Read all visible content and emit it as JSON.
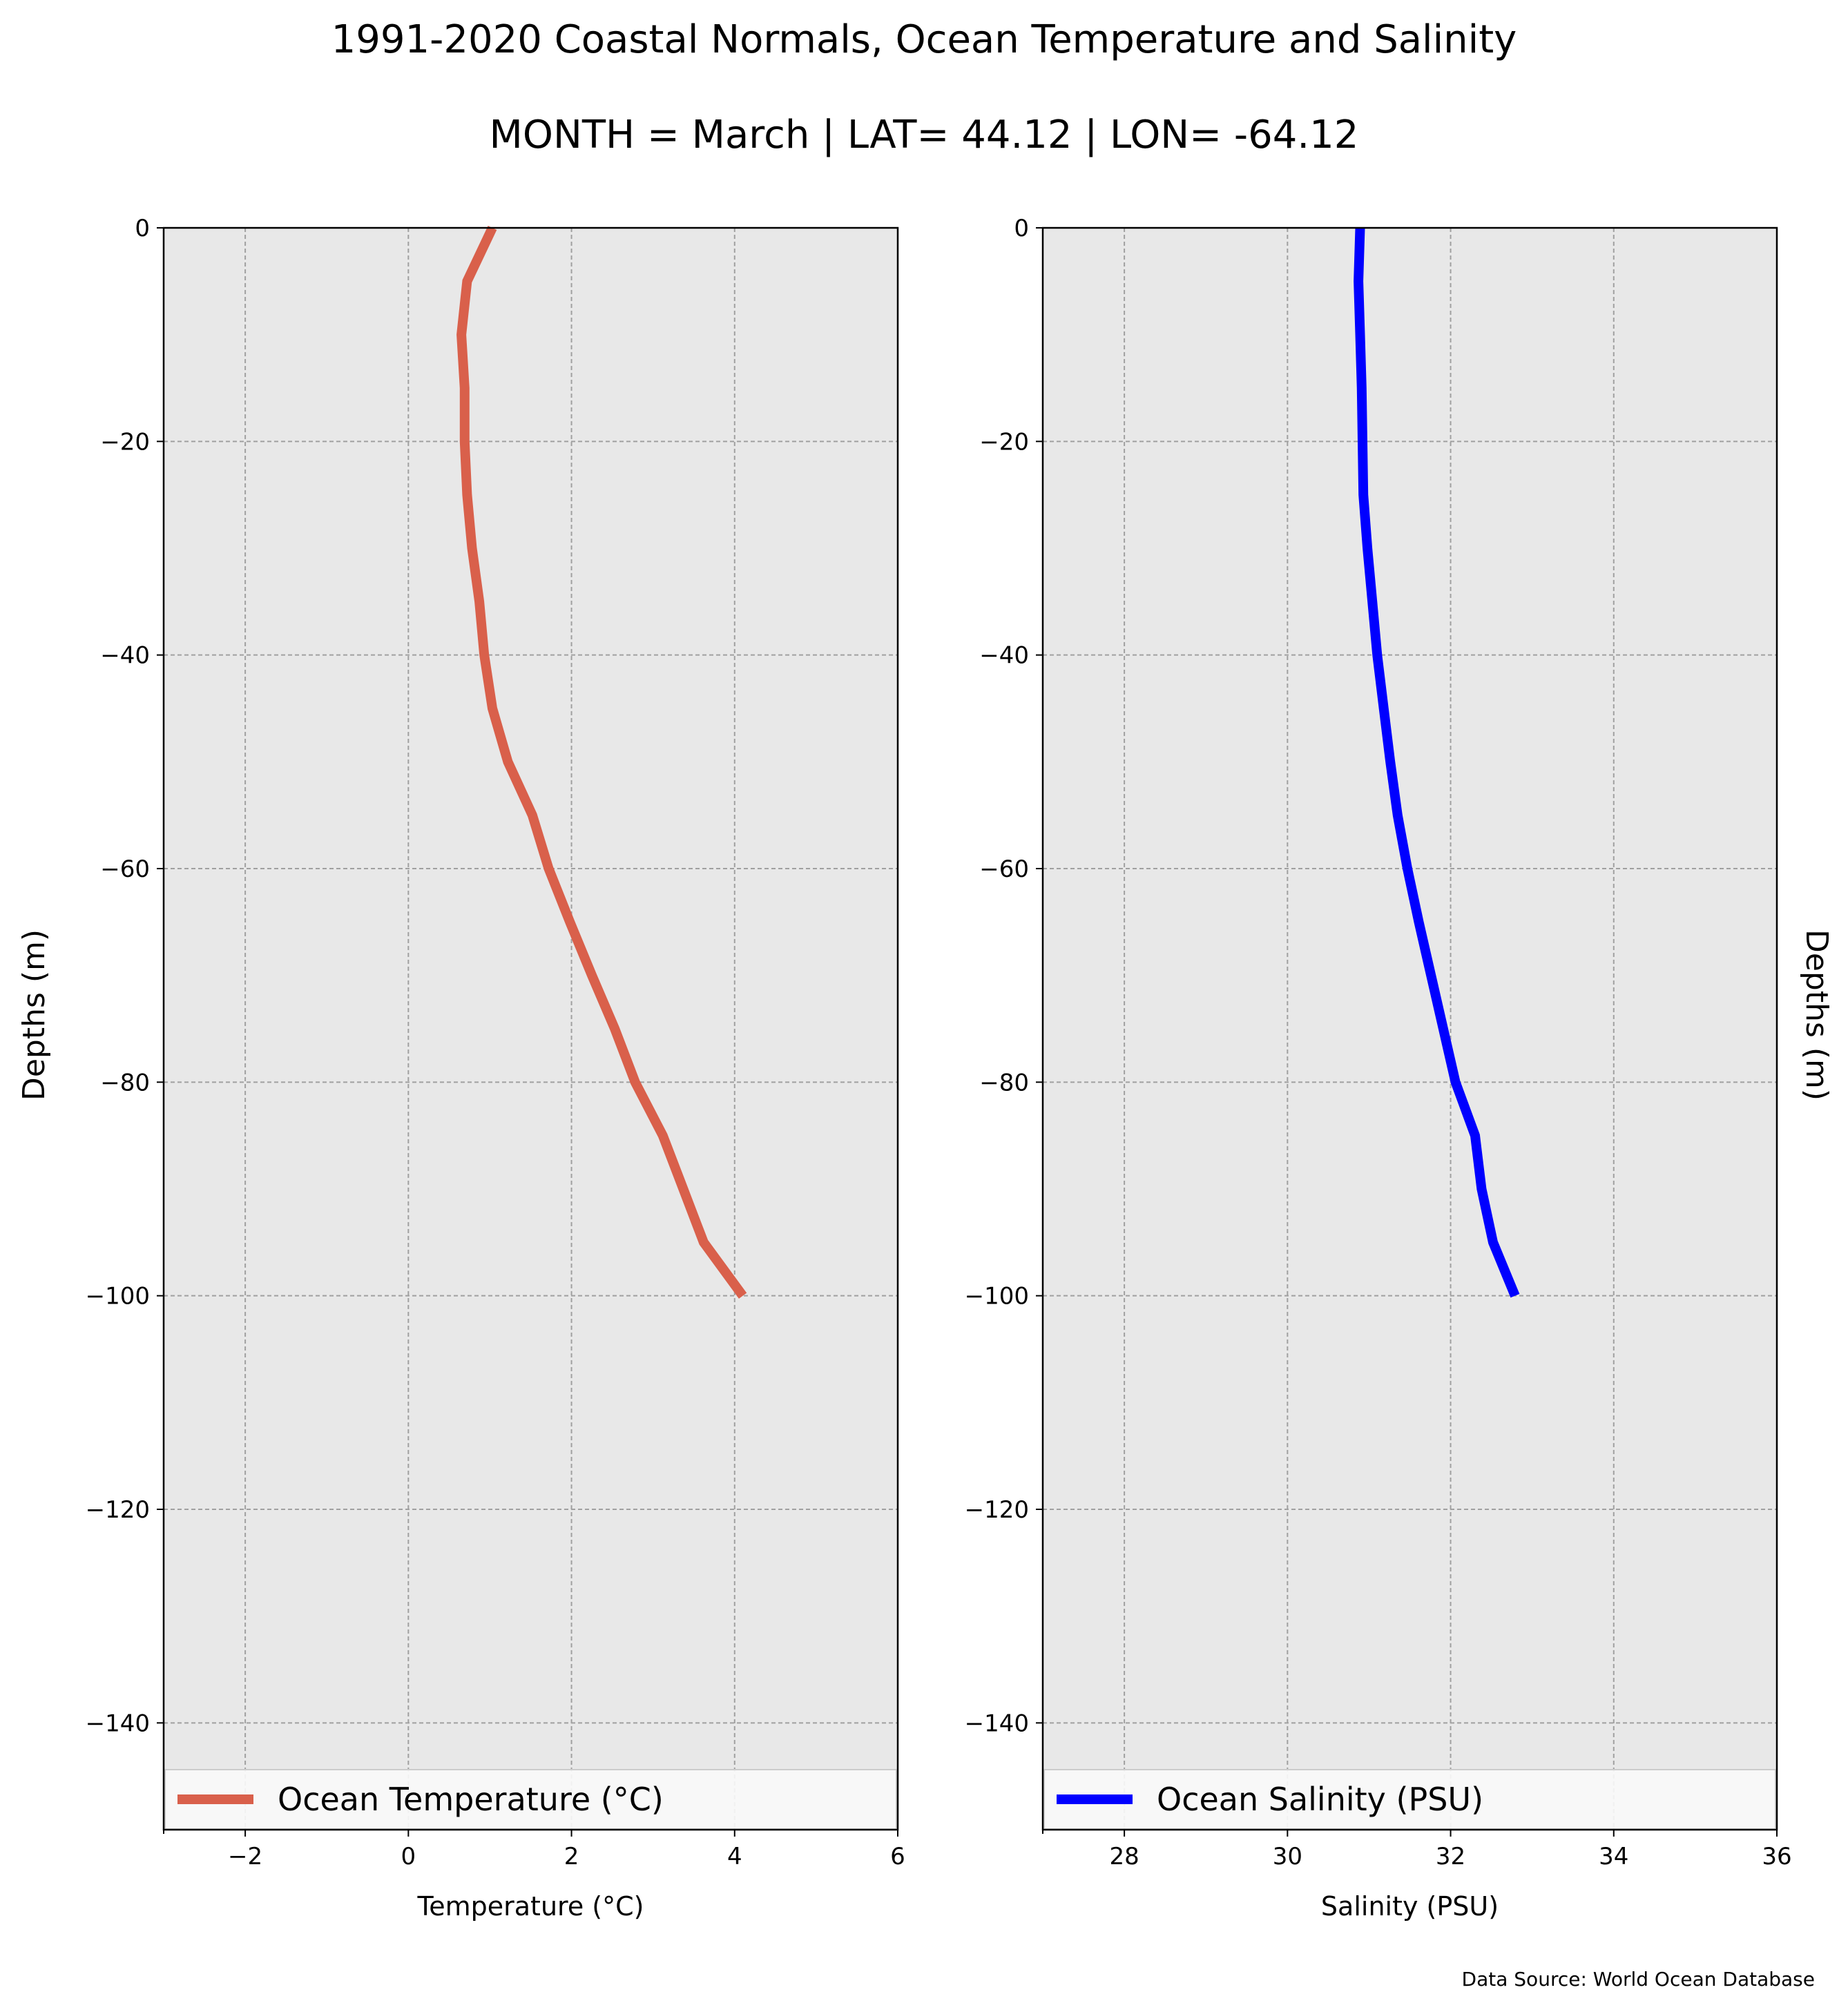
{
  "figure": {
    "title_line1": "1991-2020 Coastal Normals, Ocean Temperature and Salinity",
    "title_line2": "MONTH = March | LAT= 44.12 | LON= -64.12",
    "source": "Data Source: World Ocean Database"
  },
  "chart_data": [
    {
      "type": "line",
      "xlabel": "Temperature ($^\\circ$C)",
      "xlabel_display": "Temperature (°C)",
      "ylabel": "Depths (m)",
      "xlim": [
        -3,
        6
      ],
      "ylim": [
        -150,
        0
      ],
      "xticks": [
        -2,
        0,
        2,
        4,
        6
      ],
      "xtick_labels": [
        "−2",
        "0",
        "2",
        "4",
        "6"
      ],
      "yticks": [
        0,
        -20,
        -40,
        -60,
        -80,
        -100,
        -120,
        -140
      ],
      "ytick_labels": [
        "0",
        "−20",
        "−40",
        "−60",
        "−80",
        "−100",
        "−120",
        "−140"
      ],
      "grid": true,
      "legend_placement": "bottom",
      "series": [
        {
          "name": "Ocean Temperature (°C)",
          "color": "#d9604b",
          "x": [
            1.03,
            0.72,
            0.65,
            0.69,
            0.69,
            0.72,
            0.78,
            0.87,
            0.93,
            1.03,
            1.22,
            1.52,
            1.72,
            1.98,
            2.25,
            2.53,
            2.78,
            3.12,
            3.37,
            3.62,
            4.1
          ],
          "y": [
            0,
            -5,
            -10,
            -15,
            -20,
            -25,
            -30,
            -35,
            -40,
            -45,
            -50,
            -55,
            -60,
            -65,
            -70,
            -75,
            -80,
            -85,
            -90,
            -95,
            -100
          ]
        }
      ]
    },
    {
      "type": "line",
      "xlabel": "Salinity (PSU)",
      "ylabel": "Depths (m)",
      "xlim": [
        27,
        36
      ],
      "ylim": [
        -150,
        0
      ],
      "xticks": [
        28,
        30,
        32,
        34,
        36
      ],
      "xtick_labels": [
        "28",
        "30",
        "32",
        "34",
        "36"
      ],
      "yticks": [
        0,
        -20,
        -40,
        -60,
        -80,
        -100,
        -120,
        -140
      ],
      "ytick_labels": [
        "0",
        "−20",
        "−40",
        "−60",
        "−80",
        "−100",
        "−120",
        "−140"
      ],
      "grid": true,
      "legend_placement": "bottom",
      "series": [
        {
          "name": "Ocean Salinity (PSU)",
          "color": "#0000ff",
          "x": [
            30.89,
            30.87,
            30.89,
            30.91,
            30.92,
            30.93,
            30.98,
            31.04,
            31.1,
            31.18,
            31.26,
            31.35,
            31.47,
            31.61,
            31.76,
            31.91,
            32.06,
            32.3,
            32.38,
            32.52,
            32.79
          ],
          "y": [
            0,
            -5,
            -10,
            -15,
            -20,
            -25,
            -30,
            -35,
            -40,
            -45,
            -50,
            -55,
            -60,
            -65,
            -70,
            -75,
            -80,
            -85,
            -90,
            -95,
            -100
          ]
        }
      ]
    }
  ]
}
